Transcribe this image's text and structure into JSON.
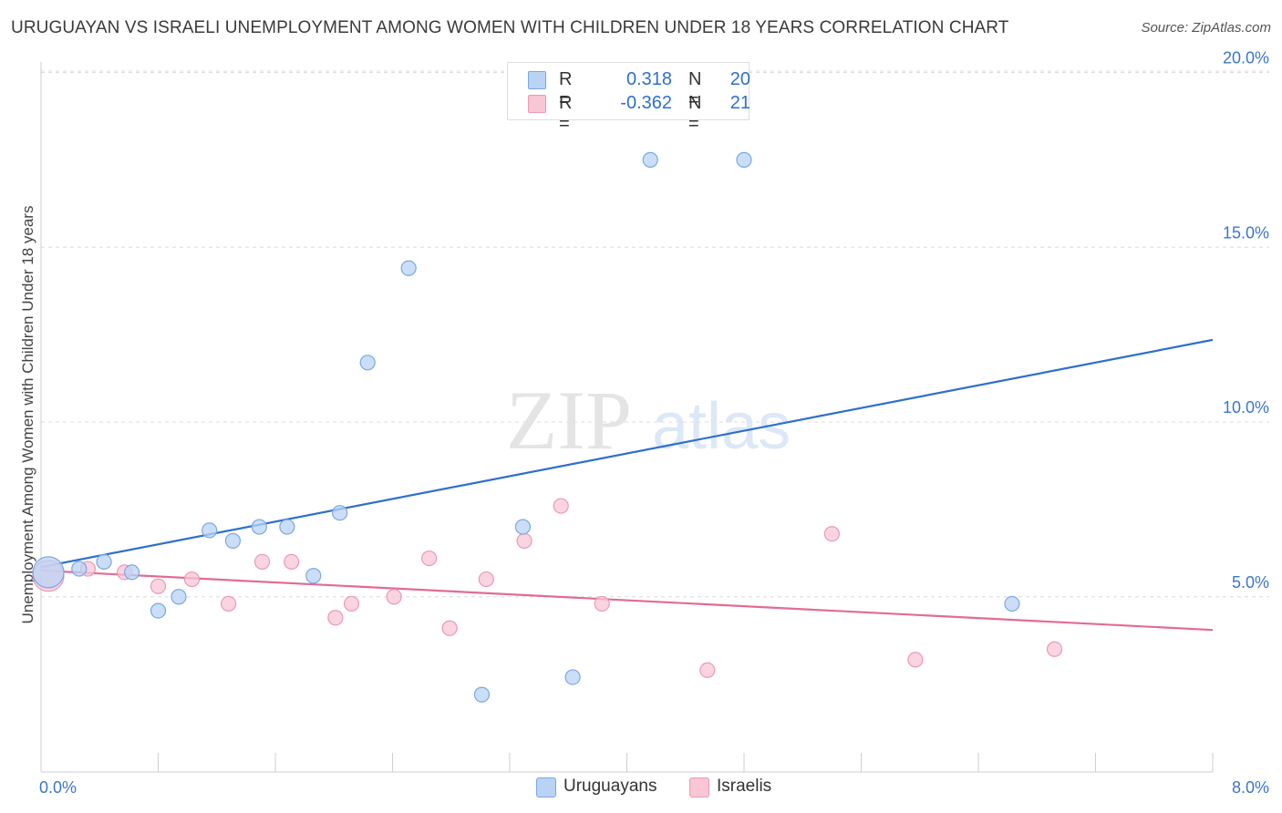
{
  "title": "URUGUAYAN VS ISRAELI UNEMPLOYMENT AMONG WOMEN WITH CHILDREN UNDER 18 YEARS CORRELATION CHART",
  "source": "Source: ZipAtlas.com",
  "watermark": {
    "zip": "ZIP",
    "atlas": "atlas"
  },
  "legend": {
    "series1": {
      "r_label": "R =",
      "r_value": "0.318",
      "n_label": "N =",
      "n_value": "20"
    },
    "series2": {
      "r_label": "R =",
      "r_value": "-0.362",
      "n_label": "N =",
      "n_value": "21"
    }
  },
  "colors": {
    "blue_fill": "#b9d3f5",
    "blue_stroke": "#7aa7e3",
    "blue_line": "#2d6fce",
    "pink_fill": "#f8c6d5",
    "pink_stroke": "#eb9ab3",
    "pink_line": "#e26b94",
    "tick_text": "#3a76cc"
  },
  "chart_data": {
    "type": "scatter",
    "title": "URUGUAYAN VS ISRAELI UNEMPLOYMENT AMONG WOMEN WITH CHILDREN UNDER 18 YEARS CORRELATION CHART",
    "xlabel": "",
    "ylabel": "Unemployment Among Women with Children Under 18 years",
    "xlim": [
      0,
      8.0
    ],
    "ylim": [
      0,
      20.5
    ],
    "x_tick_labels": [
      "0.0%",
      "8.0%"
    ],
    "y_ticks": [
      5.0,
      10.0,
      15.0,
      20.0
    ],
    "y_tick_labels": [
      "5.0%",
      "10.0%",
      "15.0%",
      "20.0%"
    ],
    "grid": "horizontal dashed",
    "legend_position": "top-center",
    "series": [
      {
        "name": "Uruguayans",
        "color": "#b9d3f5",
        "points": [
          {
            "x": 0.05,
            "y": 5.7,
            "big": true
          },
          {
            "x": 0.26,
            "y": 5.8
          },
          {
            "x": 0.43,
            "y": 6.0
          },
          {
            "x": 0.62,
            "y": 5.7
          },
          {
            "x": 0.8,
            "y": 4.6
          },
          {
            "x": 0.94,
            "y": 5.0
          },
          {
            "x": 1.15,
            "y": 6.9
          },
          {
            "x": 1.31,
            "y": 6.6
          },
          {
            "x": 1.49,
            "y": 7.0
          },
          {
            "x": 1.68,
            "y": 7.0
          },
          {
            "x": 1.86,
            "y": 5.6
          },
          {
            "x": 2.04,
            "y": 7.4
          },
          {
            "x": 2.23,
            "y": 11.7
          },
          {
            "x": 2.51,
            "y": 14.4
          },
          {
            "x": 3.01,
            "y": 2.2
          },
          {
            "x": 3.29,
            "y": 7.0
          },
          {
            "x": 3.63,
            "y": 2.7
          },
          {
            "x": 4.16,
            "y": 17.5
          },
          {
            "x": 4.8,
            "y": 17.5
          },
          {
            "x": 6.63,
            "y": 4.8
          }
        ],
        "trend": {
          "x": [
            0.0,
            8.0
          ],
          "y": [
            5.85,
            12.35
          ]
        }
      },
      {
        "name": "Israelis",
        "color": "#f8c6d5",
        "points": [
          {
            "x": 0.05,
            "y": 5.6,
            "big": true
          },
          {
            "x": 0.32,
            "y": 5.8
          },
          {
            "x": 0.57,
            "y": 5.7
          },
          {
            "x": 0.8,
            "y": 5.3
          },
          {
            "x": 1.03,
            "y": 5.5
          },
          {
            "x": 1.28,
            "y": 4.8
          },
          {
            "x": 1.51,
            "y": 6.0
          },
          {
            "x": 1.71,
            "y": 6.0
          },
          {
            "x": 2.01,
            "y": 4.4
          },
          {
            "x": 2.12,
            "y": 4.8
          },
          {
            "x": 2.41,
            "y": 5.0
          },
          {
            "x": 2.65,
            "y": 6.1
          },
          {
            "x": 2.79,
            "y": 4.1
          },
          {
            "x": 3.04,
            "y": 5.5
          },
          {
            "x": 3.3,
            "y": 6.6
          },
          {
            "x": 3.55,
            "y": 7.6
          },
          {
            "x": 3.83,
            "y": 4.8
          },
          {
            "x": 4.55,
            "y": 2.9
          },
          {
            "x": 5.4,
            "y": 6.8
          },
          {
            "x": 5.97,
            "y": 3.2
          },
          {
            "x": 6.92,
            "y": 3.5
          }
        ],
        "trend": {
          "x": [
            0.0,
            8.0
          ],
          "y": [
            5.75,
            4.05
          ]
        }
      }
    ]
  },
  "bottom_legend": {
    "series1": "Uruguayans",
    "series2": "Israelis"
  }
}
